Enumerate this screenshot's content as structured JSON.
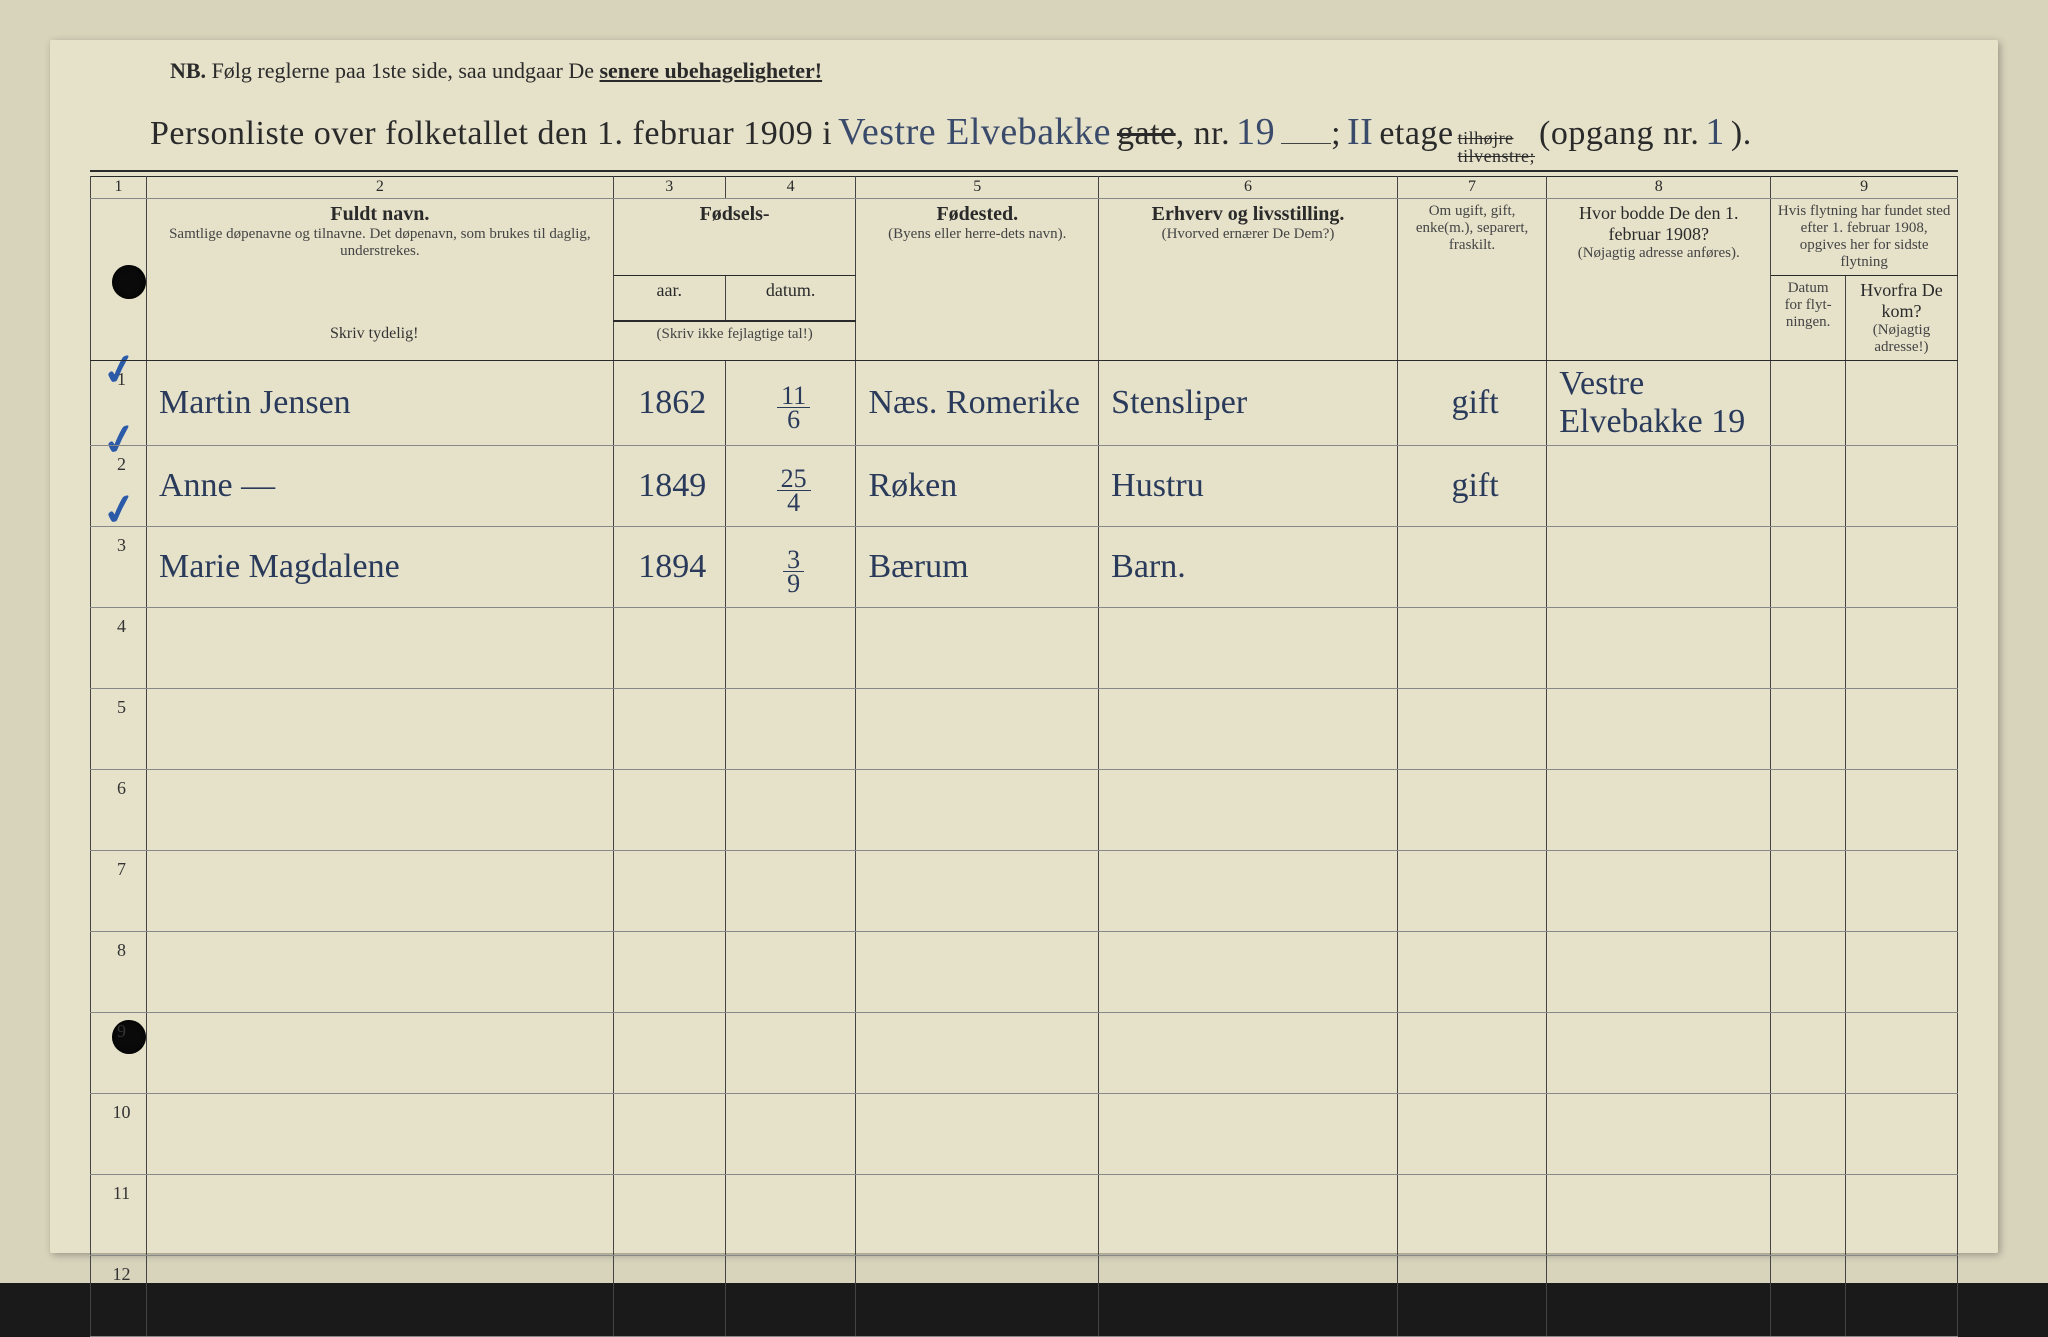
{
  "header": {
    "nb_prefix": "NB.",
    "nb_text": "Følg reglerne paa 1ste side, saa undgaar De",
    "nb_bold": "senere ubehageligheter!",
    "title_prefix": "Personliste over folketallet den 1. februar 1909 i",
    "street_hand": "Vestre Elvebakke",
    "gate_strike": "gate",
    "nr_label": ", nr.",
    "nr_value": "19",
    "semicolon": ";",
    "etage_value": "II",
    "etage_label": "etage",
    "tilhojre_strike": "tilhøjre",
    "tilvenstre_strike": "tilvenstre;",
    "opgang_label": "(opgang nr.",
    "opgang_value": "1",
    "opgang_close": ")."
  },
  "columns": {
    "nums": [
      "1",
      "2",
      "3",
      "4",
      "5",
      "6",
      "7",
      "8",
      "9"
    ],
    "fuldt_navn": "Fuldt navn.",
    "fuldt_sub": "Samtlige døpenavne og tilnavne. Det døpenavn, som brukes til daglig, understrekes.",
    "fodsels": "Fødsels-",
    "aar": "aar.",
    "datum": "datum.",
    "fodsels_sub": "(Skriv ikke fejlagtige tal!)",
    "fodested": "Fødested.",
    "fodested_sub": "(Byens eller herre-dets navn).",
    "erhverv": "Erhverv og livsstilling.",
    "erhverv_sub": "(Hvorved ernærer De Dem?)",
    "ugift": "Om ugift, gift, enke(m.), separert, fraskilt.",
    "hvor_bodde": "Hvor bodde De den 1. februar 1908?",
    "hvor_bodde_sub": "(Nøjagtig adresse anføres).",
    "flytning": "Hvis flytning har fundet sted efter 1. februar 1908, opgives her for sidste flytning",
    "datum_flyt": "Datum for flyt-ningen.",
    "hvorfra": "Hvorfra De kom?",
    "hvorfra_sub": "(Nøjagtig adresse!)",
    "skriv_tydeligt": "Skriv tydelig!"
  },
  "rows": [
    {
      "n": "1",
      "name": "Martin Jensen",
      "aar": "1862",
      "datum_top": "11",
      "datum_bot": "6",
      "sted": "Næs. Romerike",
      "erhverv": "Stensliper",
      "status": "gift",
      "bodde": "Vestre Elvebakke 19"
    },
    {
      "n": "2",
      "name": "Anne      —",
      "aar": "1849",
      "datum_top": "25",
      "datum_bot": "4",
      "sted": "Røken",
      "erhverv": "Hustru",
      "status": "gift",
      "bodde": ""
    },
    {
      "n": "3",
      "name": "Marie Magdalene",
      "aar": "1894",
      "datum_top": "3",
      "datum_bot": "9",
      "sted": "Bærum",
      "erhverv": "Barn.",
      "status": "",
      "bodde": ""
    },
    {
      "n": "4"
    },
    {
      "n": "5"
    },
    {
      "n": "6"
    },
    {
      "n": "7"
    },
    {
      "n": "8"
    },
    {
      "n": "9"
    },
    {
      "n": "10"
    },
    {
      "n": "11"
    },
    {
      "n": "12"
    }
  ],
  "styling": {
    "page_bg": "#d8d4bc",
    "paper_bg": "#e6e2ca",
    "ink": "#2a2a2a",
    "hand_ink": "#2a3a5a",
    "check_ink": "#2a5aa8",
    "col_widths_pct": [
      3,
      25,
      6,
      7,
      13,
      16,
      8,
      12,
      4,
      6
    ]
  }
}
